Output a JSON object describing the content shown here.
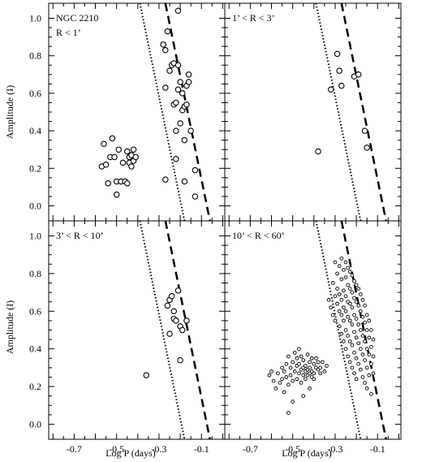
{
  "figure": {
    "xlabel": "Log P (days)",
    "ylabel": "Amplitude (I)",
    "x_ticks": [
      "-0.7",
      "-0.5",
      "-0.3",
      "-0.1"
    ],
    "y_ticks": [
      "0.0",
      "0.2",
      "0.4",
      "0.6",
      "0.8",
      "1.0"
    ]
  },
  "chart_data": [
    {
      "type": "scatter",
      "title": "NGC 2210",
      "subtitle": "R < 1’",
      "xlim": [
        -0.82,
        0.01
      ],
      "ylim": [
        -0.08,
        1.08
      ],
      "grid": false,
      "lines": [
        {
          "style": "dotted",
          "x": [
            -0.39,
            -0.18
          ],
          "y": [
            1.08,
            -0.08
          ]
        },
        {
          "style": "dashed",
          "x": [
            -0.27,
            -0.06
          ],
          "y": [
            1.08,
            -0.08
          ]
        }
      ],
      "series": [
        {
          "marker": "open-circle",
          "points": [
            [
              -0.57,
              0.21
            ],
            [
              -0.56,
              0.33
            ],
            [
              -0.55,
              0.22
            ],
            [
              -0.54,
              0.12
            ],
            [
              -0.53,
              0.26
            ],
            [
              -0.52,
              0.36
            ],
            [
              -0.51,
              0.26
            ],
            [
              -0.5,
              0.06
            ],
            [
              -0.5,
              0.13
            ],
            [
              -0.49,
              0.3
            ],
            [
              -0.48,
              0.13
            ],
            [
              -0.47,
              0.23
            ],
            [
              -0.46,
              0.13
            ],
            [
              -0.45,
              0.12
            ],
            [
              -0.45,
              0.29
            ],
            [
              -0.44,
              0.23
            ],
            [
              -0.44,
              0.26
            ],
            [
              -0.43,
              0.21
            ],
            [
              -0.43,
              0.27
            ],
            [
              -0.42,
              0.24
            ],
            [
              -0.42,
              0.3
            ],
            [
              -0.41,
              0.26
            ],
            [
              -0.28,
              0.86
            ],
            [
              -0.27,
              0.83
            ],
            [
              -0.27,
              0.63
            ],
            [
              -0.27,
              0.14
            ],
            [
              -0.26,
              0.93
            ],
            [
              -0.25,
              0.72
            ],
            [
              -0.24,
              0.75
            ],
            [
              -0.23,
              0.76
            ],
            [
              -0.23,
              0.54
            ],
            [
              -0.22,
              0.55
            ],
            [
              -0.22,
              0.4
            ],
            [
              -0.22,
              0.25
            ],
            [
              -0.21,
              0.62
            ],
            [
              -0.21,
              0.75
            ],
            [
              -0.21,
              1.04
            ],
            [
              -0.2,
              0.44
            ],
            [
              -0.2,
              0.66
            ],
            [
              -0.19,
              0.51
            ],
            [
              -0.19,
              0.6
            ],
            [
              -0.18,
              0.35
            ],
            [
              -0.18,
              0.53
            ],
            [
              -0.18,
              0.13
            ],
            [
              -0.17,
              0.54
            ],
            [
              -0.17,
              0.64
            ],
            [
              -0.16,
              0.7
            ],
            [
              -0.16,
              0.66
            ],
            [
              -0.15,
              0.4
            ],
            [
              -0.13,
              0.19
            ],
            [
              -0.13,
              0.05
            ]
          ]
        }
      ]
    },
    {
      "type": "scatter",
      "title": "1’ < R < 3’",
      "xlim": [
        -0.82,
        0.01
      ],
      "ylim": [
        -0.08,
        1.08
      ],
      "grid": false,
      "lines": [
        {
          "style": "dotted",
          "x": [
            -0.39,
            -0.18
          ],
          "y": [
            1.08,
            -0.08
          ]
        },
        {
          "style": "dashed",
          "x": [
            -0.27,
            -0.06
          ],
          "y": [
            1.08,
            -0.08
          ]
        }
      ],
      "series": [
        {
          "marker": "open-circle",
          "points": [
            [
              -0.38,
              0.29
            ],
            [
              -0.32,
              0.62
            ],
            [
              -0.29,
              0.81
            ],
            [
              -0.28,
              0.72
            ],
            [
              -0.27,
              0.64
            ],
            [
              -0.21,
              0.69
            ],
            [
              -0.19,
              0.7
            ],
            [
              -0.16,
              0.4
            ],
            [
              -0.15,
              0.31
            ]
          ]
        }
      ]
    },
    {
      "type": "scatter",
      "title": "3’ < R < 10’",
      "xlim": [
        -0.82,
        0.01
      ],
      "ylim": [
        -0.08,
        1.08
      ],
      "grid": false,
      "lines": [
        {
          "style": "dotted",
          "x": [
            -0.39,
            -0.18
          ],
          "y": [
            1.08,
            -0.08
          ]
        },
        {
          "style": "dashed",
          "x": [
            -0.27,
            -0.06
          ],
          "y": [
            1.08,
            -0.08
          ]
        }
      ],
      "series": [
        {
          "marker": "open-circle",
          "points": [
            [
              -0.36,
              0.26
            ],
            [
              -0.26,
              0.63
            ],
            [
              -0.25,
              0.66
            ],
            [
              -0.25,
              0.48
            ],
            [
              -0.24,
              0.68
            ],
            [
              -0.23,
              0.6
            ],
            [
              -0.23,
              0.56
            ],
            [
              -0.22,
              0.55
            ],
            [
              -0.21,
              0.71
            ],
            [
              -0.2,
              0.34
            ],
            [
              -0.2,
              0.52
            ],
            [
              -0.19,
              0.5
            ],
            [
              -0.17,
              0.55
            ]
          ]
        }
      ]
    },
    {
      "type": "scatter",
      "title": "10’ < R < 60’",
      "xlim": [
        -0.82,
        0.01
      ],
      "ylim": [
        -0.08,
        1.08
      ],
      "grid": false,
      "lines": [
        {
          "style": "dotted",
          "x": [
            -0.39,
            -0.18
          ],
          "y": [
            1.08,
            -0.08
          ]
        },
        {
          "style": "dashed",
          "x": [
            -0.27,
            -0.06
          ],
          "y": [
            1.08,
            -0.08
          ]
        }
      ],
      "series": [
        {
          "marker": "small-open-circle",
          "points": [
            [
              -0.61,
              0.26
            ],
            [
              -0.6,
              0.28
            ],
            [
              -0.59,
              0.23
            ],
            [
              -0.58,
              0.19
            ],
            [
              -0.57,
              0.27
            ],
            [
              -0.56,
              0.22
            ],
            [
              -0.55,
              0.3
            ],
            [
              -0.55,
              0.24
            ],
            [
              -0.54,
              0.17
            ],
            [
              -0.54,
              0.28
            ],
            [
              -0.53,
              0.32
            ],
            [
              -0.53,
              0.25
            ],
            [
              -0.52,
              0.21
            ],
            [
              -0.52,
              0.36
            ],
            [
              -0.51,
              0.3
            ],
            [
              -0.51,
              0.26
            ],
            [
              -0.5,
              0.23
            ],
            [
              -0.5,
              0.33
            ],
            [
              -0.5,
              0.12
            ],
            [
              -0.49,
              0.28
            ],
            [
              -0.49,
              0.38
            ],
            [
              -0.48,
              0.31
            ],
            [
              -0.48,
              0.24
            ],
            [
              -0.48,
              0.35
            ],
            [
              -0.47,
              0.27
            ],
            [
              -0.47,
              0.4
            ],
            [
              -0.47,
              0.32
            ],
            [
              -0.46,
              0.29
            ],
            [
              -0.46,
              0.22
            ],
            [
              -0.46,
              0.36
            ],
            [
              -0.45,
              0.3
            ],
            [
              -0.45,
              0.26
            ],
            [
              -0.45,
              0.34
            ],
            [
              -0.44,
              0.28
            ],
            [
              -0.44,
              0.31
            ],
            [
              -0.44,
              0.24
            ],
            [
              -0.43,
              0.37
            ],
            [
              -0.43,
              0.29
            ],
            [
              -0.43,
              0.26
            ],
            [
              -0.42,
              0.33
            ],
            [
              -0.42,
              0.27
            ],
            [
              -0.42,
              0.3
            ],
            [
              -0.41,
              0.35
            ],
            [
              -0.41,
              0.25
            ],
            [
              -0.41,
              0.28
            ],
            [
              -0.4,
              0.32
            ],
            [
              -0.4,
              0.27
            ],
            [
              -0.4,
              0.24
            ],
            [
              -0.39,
              0.3
            ],
            [
              -0.39,
              0.35
            ],
            [
              -0.38,
              0.29
            ],
            [
              -0.38,
              0.33
            ],
            [
              -0.37,
              0.27
            ],
            [
              -0.37,
              0.3
            ],
            [
              -0.36,
              0.33
            ],
            [
              -0.35,
              0.28
            ],
            [
              -0.34,
              0.31
            ],
            [
              -0.52,
              0.06
            ],
            [
              -0.45,
              0.15
            ],
            [
              -0.42,
              0.19
            ],
            [
              -0.33,
              0.66
            ],
            [
              -0.32,
              0.62
            ],
            [
              -0.31,
              0.58
            ],
            [
              -0.31,
              0.75
            ],
            [
              -0.3,
              0.68
            ],
            [
              -0.3,
              0.86
            ],
            [
              -0.3,
              0.55
            ],
            [
              -0.29,
              0.72
            ],
            [
              -0.29,
              0.64
            ],
            [
              -0.29,
              0.8
            ],
            [
              -0.28,
              0.6
            ],
            [
              -0.28,
              0.84
            ],
            [
              -0.28,
              0.69
            ],
            [
              -0.28,
              0.52
            ],
            [
              -0.27,
              0.77
            ],
            [
              -0.27,
              0.66
            ],
            [
              -0.27,
              0.88
            ],
            [
              -0.27,
              0.58
            ],
            [
              -0.27,
              0.48
            ],
            [
              -0.26,
              0.82
            ],
            [
              -0.26,
              0.71
            ],
            [
              -0.26,
              0.62
            ],
            [
              -0.26,
              0.55
            ],
            [
              -0.26,
              0.44
            ],
            [
              -0.25,
              0.86
            ],
            [
              -0.25,
              0.78
            ],
            [
              -0.25,
              0.68
            ],
            [
              -0.25,
              0.6
            ],
            [
              -0.25,
              0.5
            ],
            [
              -0.25,
              0.4
            ],
            [
              -0.24,
              0.83
            ],
            [
              -0.24,
              0.74
            ],
            [
              -0.24,
              0.65
            ],
            [
              -0.24,
              0.57
            ],
            [
              -0.24,
              0.47
            ],
            [
              -0.24,
              0.36
            ],
            [
              -0.23,
              0.81
            ],
            [
              -0.23,
              0.72
            ],
            [
              -0.23,
              0.64
            ],
            [
              -0.23,
              0.55
            ],
            [
              -0.23,
              0.44
            ],
            [
              -0.23,
              0.33
            ],
            [
              -0.22,
              0.79
            ],
            [
              -0.22,
              0.7
            ],
            [
              -0.22,
              0.62
            ],
            [
              -0.22,
              0.53
            ],
            [
              -0.22,
              0.42
            ],
            [
              -0.22,
              0.3
            ],
            [
              -0.21,
              0.76
            ],
            [
              -0.21,
              0.67
            ],
            [
              -0.21,
              0.58
            ],
            [
              -0.21,
              0.49
            ],
            [
              -0.21,
              0.38
            ],
            [
              -0.21,
              0.27
            ],
            [
              -0.2,
              0.74
            ],
            [
              -0.2,
              0.65
            ],
            [
              -0.2,
              0.56
            ],
            [
              -0.2,
              0.46
            ],
            [
              -0.2,
              0.35
            ],
            [
              -0.2,
              0.24
            ],
            [
              -0.19,
              0.72
            ],
            [
              -0.19,
              0.63
            ],
            [
              -0.19,
              0.53
            ],
            [
              -0.19,
              0.43
            ],
            [
              -0.19,
              0.32
            ],
            [
              -0.18,
              0.69
            ],
            [
              -0.18,
              0.6
            ],
            [
              -0.18,
              0.5
            ],
            [
              -0.18,
              0.4
            ],
            [
              -0.18,
              0.29
            ],
            [
              -0.17,
              0.66
            ],
            [
              -0.17,
              0.57
            ],
            [
              -0.17,
              0.47
            ],
            [
              -0.17,
              0.37
            ],
            [
              -0.17,
              0.25
            ],
            [
              -0.16,
              0.63
            ],
            [
              -0.16,
              0.54
            ],
            [
              -0.16,
              0.44
            ],
            [
              -0.16,
              0.34
            ],
            [
              -0.16,
              0.22
            ],
            [
              -0.15,
              0.58
            ],
            [
              -0.15,
              0.5
            ],
            [
              -0.15,
              0.4
            ],
            [
              -0.15,
              0.3
            ],
            [
              -0.15,
              0.19
            ],
            [
              -0.14,
              0.55
            ],
            [
              -0.14,
              0.46
            ],
            [
              -0.14,
              0.37
            ],
            [
              -0.14,
              0.26
            ],
            [
              -0.13,
              0.5
            ],
            [
              -0.13,
              0.41
            ],
            [
              -0.13,
              0.32
            ],
            [
              -0.13,
              0.16
            ],
            [
              -0.12,
              0.45
            ],
            [
              -0.12,
              0.36
            ],
            [
              -0.12,
              0.27
            ]
          ]
        }
      ]
    }
  ]
}
